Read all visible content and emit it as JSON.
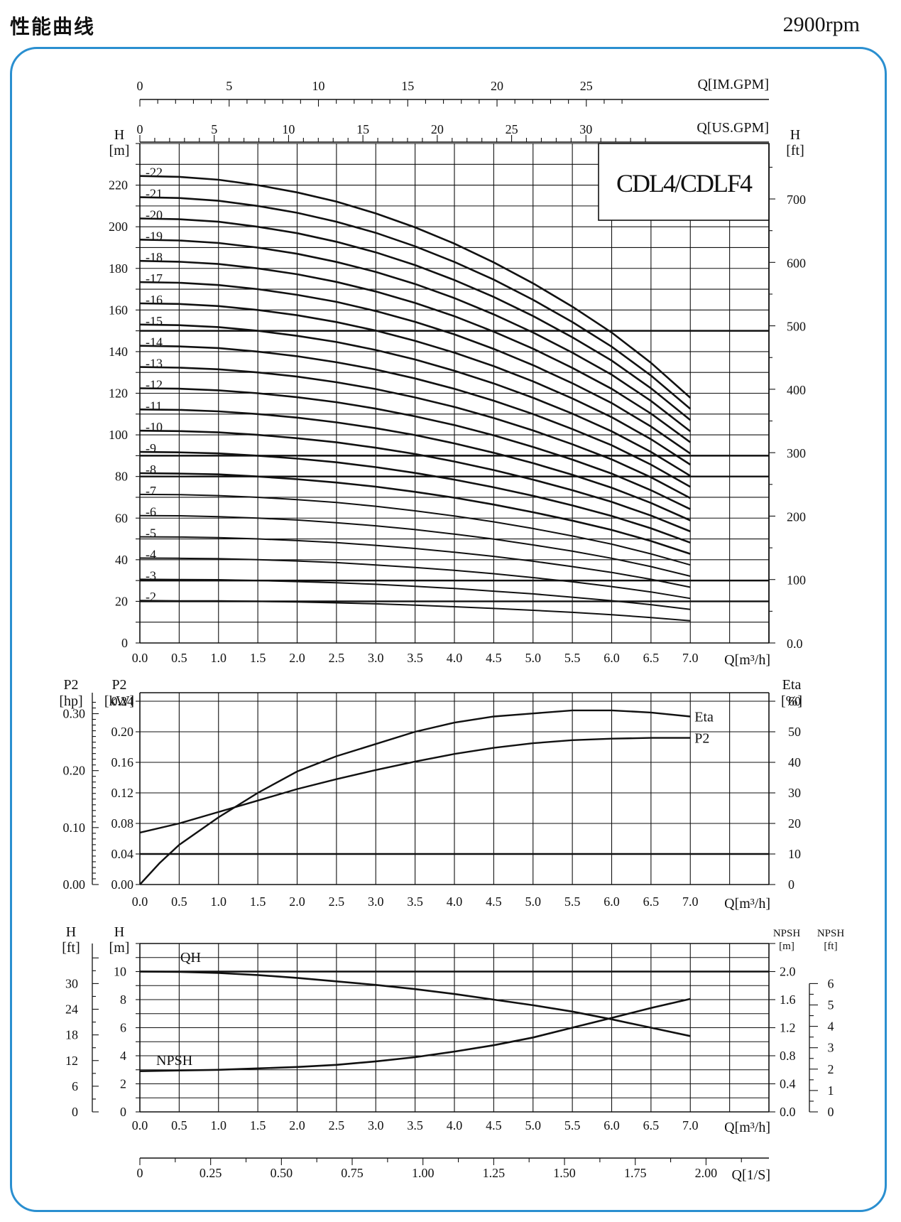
{
  "header": {
    "title": "性能曲线",
    "speed": "2900rpm"
  },
  "chart_data": [
    {
      "type": "line",
      "model_label": "CDL4/CDLF4",
      "xlabel": "Q[m³/h]",
      "xlim": [
        0,
        7
      ],
      "x_ticks": [
        "0.0",
        "0.5",
        "1.0",
        "1.5",
        "2.0",
        "2.5",
        "3.0",
        "3.5",
        "4.0",
        "4.5",
        "5.0",
        "5.5",
        "6.0",
        "6.5",
        "7.0"
      ],
      "top_axis_im": {
        "label": "Q[IM.GPM]",
        "ticks": [
          "0",
          "5",
          "10",
          "15",
          "20",
          "25"
        ]
      },
      "top_axis_us": {
        "label": "Q[US.GPM]",
        "ticks": [
          "0",
          "5",
          "10",
          "15",
          "20",
          "25",
          "30"
        ]
      },
      "y_left": {
        "label": [
          "H",
          "[m]"
        ],
        "lim": [
          0,
          240
        ],
        "ticks": [
          "0",
          "20",
          "40",
          "60",
          "80",
          "100",
          "120",
          "140",
          "160",
          "180",
          "200",
          "220"
        ]
      },
      "y_right": {
        "label": [
          "H",
          "[ft]"
        ],
        "ticks": [
          "0.0",
          "100",
          "200",
          "300",
          "400",
          "500",
          "600",
          "700"
        ]
      },
      "x": [
        0,
        0.5,
        1,
        1.5,
        2,
        2.5,
        3,
        3.5,
        4,
        4.5,
        5,
        5.5,
        6,
        6.5,
        7
      ],
      "shape_factors": [
        1.0,
        0.998,
        0.992,
        0.98,
        0.965,
        0.945,
        0.92,
        0.89,
        0.855,
        0.815,
        0.77,
        0.72,
        0.665,
        0.6,
        0.525
      ],
      "series": [
        {
          "name": "-2",
          "values": [
            20.4,
            20.2,
            20.2,
            20.0,
            19.7,
            19.3,
            18.8,
            18.2,
            17.4,
            16.6,
            15.7,
            14.7,
            13.6,
            12.2,
            10.7
          ]
        },
        {
          "name": "-3",
          "values": [
            30.6,
            30.5,
            30.4,
            30.0,
            29.5,
            28.9,
            28.2,
            27.2,
            26.2,
            24.9,
            23.6,
            22.0,
            20.3,
            18.4,
            16.1
          ]
        },
        {
          "name": "-4",
          "values": [
            40.8,
            40.7,
            40.5,
            40.0,
            39.4,
            38.6,
            37.5,
            36.3,
            34.9,
            33.3,
            31.4,
            29.4,
            27.1,
            24.5,
            21.4
          ]
        },
        {
          "name": "-5",
          "values": [
            51.0,
            50.9,
            50.6,
            50.0,
            49.2,
            48.2,
            46.9,
            45.4,
            43.6,
            41.6,
            39.3,
            36.7,
            33.9,
            30.6,
            26.8
          ]
        },
        {
          "name": "-6",
          "values": [
            61.2,
            61.1,
            60.7,
            60.0,
            59.1,
            57.8,
            56.3,
            54.5,
            52.3,
            49.9,
            47.1,
            44.1,
            40.7,
            36.7,
            32.1
          ]
        },
        {
          "name": "-7",
          "values": [
            71.4,
            71.3,
            70.8,
            70.0,
            68.9,
            67.5,
            65.7,
            63.5,
            61.0,
            58.2,
            55.0,
            51.4,
            47.5,
            42.8,
            37.5
          ]
        },
        {
          "name": "-8",
          "values": [
            81.6,
            81.4,
            81.0,
            80.0,
            78.7,
            77.1,
            75.1,
            72.6,
            69.8,
            66.5,
            62.8,
            58.8,
            54.3,
            49.0,
            42.8
          ]
        },
        {
          "name": "-9",
          "values": [
            91.8,
            91.6,
            91.1,
            90.0,
            88.6,
            86.8,
            84.5,
            81.7,
            78.5,
            74.8,
            70.7,
            66.1,
            61.0,
            55.1,
            48.2
          ]
        },
        {
          "name": "-10",
          "values": [
            102.0,
            101.8,
            101.2,
            100.0,
            98.4,
            96.4,
            93.8,
            90.8,
            87.2,
            83.1,
            78.5,
            73.4,
            67.8,
            61.2,
            53.6
          ]
        },
        {
          "name": "-11",
          "values": [
            112.2,
            112.0,
            111.3,
            110.0,
            108.3,
            106.0,
            103.2,
            99.9,
            95.9,
            91.4,
            86.4,
            80.8,
            74.6,
            67.3,
            58.9
          ]
        },
        {
          "name": "-12",
          "values": [
            122.4,
            122.2,
            121.4,
            120.0,
            118.1,
            115.7,
            112.6,
            108.9,
            104.7,
            99.8,
            94.2,
            88.1,
            81.4,
            73.4,
            64.3
          ]
        },
        {
          "name": "-13",
          "values": [
            132.6,
            132.3,
            131.5,
            130.0,
            128.0,
            125.3,
            122.0,
            118.0,
            113.4,
            108.1,
            102.1,
            95.5,
            88.2,
            79.6,
            69.6
          ]
        },
        {
          "name": "-14",
          "values": [
            142.8,
            142.5,
            141.7,
            140.0,
            137.8,
            134.9,
            131.4,
            127.1,
            122.1,
            116.4,
            110.0,
            102.8,
            95.0,
            85.7,
            75.0
          ]
        },
        {
          "name": "-15",
          "values": [
            153.0,
            152.7,
            151.8,
            150.0,
            147.6,
            144.6,
            140.8,
            136.2,
            130.8,
            124.7,
            117.8,
            110.2,
            101.7,
            91.8,
            80.3
          ]
        },
        {
          "name": "-16",
          "values": [
            163.2,
            162.9,
            161.9,
            160.0,
            157.5,
            154.2,
            150.1,
            145.2,
            139.5,
            133.0,
            125.7,
            117.5,
            108.5,
            97.9,
            85.7
          ]
        },
        {
          "name": "-17",
          "values": [
            173.4,
            173.1,
            172.0,
            170.0,
            167.3,
            163.9,
            159.5,
            154.3,
            148.3,
            141.3,
            133.5,
            124.8,
            115.3,
            104.0,
            91.0
          ]
        },
        {
          "name": "-18",
          "values": [
            183.6,
            183.2,
            182.1,
            180.0,
            177.2,
            173.5,
            168.9,
            163.4,
            157.0,
            149.6,
            141.4,
            132.2,
            122.1,
            110.2,
            96.4
          ]
        },
        {
          "name": "-19",
          "values": [
            193.8,
            193.4,
            192.2,
            190.0,
            187.0,
            183.1,
            178.3,
            172.5,
            165.7,
            157.9,
            149.2,
            139.5,
            128.9,
            116.3,
            101.7
          ]
        },
        {
          "name": "-20",
          "values": [
            204.0,
            203.6,
            202.4,
            200.0,
            196.9,
            192.8,
            187.7,
            181.6,
            174.4,
            166.3,
            157.1,
            146.9,
            135.7,
            122.4,
            107.1
          ]
        },
        {
          "name": "-21",
          "values": [
            214.2,
            213.8,
            212.5,
            210.0,
            206.7,
            202.4,
            197.1,
            190.6,
            183.1,
            174.6,
            164.9,
            154.2,
            142.4,
            128.5,
            112.5
          ]
        },
        {
          "name": "-22",
          "values": [
            224.4,
            224.0,
            222.6,
            220.0,
            216.5,
            212.1,
            206.4,
            199.7,
            191.9,
            182.9,
            172.8,
            161.6,
            149.2,
            134.6,
            117.8
          ]
        }
      ]
    },
    {
      "type": "line",
      "xlabel": "Q[m³/h]",
      "xlim": [
        0,
        7
      ],
      "x_ticks": [
        "0.0",
        "0.5",
        "1.0",
        "1.5",
        "2.0",
        "2.5",
        "3.0",
        "3.5",
        "4.0",
        "4.5",
        "5.0",
        "5.5",
        "6.0",
        "6.5",
        "7.0"
      ],
      "y_left_hp": {
        "label": [
          "P2",
          "[hp]"
        ],
        "ticks": [
          "0.00",
          "0.10",
          "0.20",
          "0.30"
        ]
      },
      "y_left_kw": {
        "label": [
          "P2",
          "[kW]"
        ],
        "lim": [
          0,
          0.24
        ],
        "ticks": [
          "0.00",
          "0.04",
          "0.08",
          "0.12",
          "0.16",
          "0.20",
          "0.24"
        ]
      },
      "y_right": {
        "label": [
          "Eta",
          "[%]"
        ],
        "lim": [
          0,
          60
        ],
        "ticks": [
          "0",
          "10",
          "20",
          "30",
          "40",
          "50",
          "60"
        ]
      },
      "series": [
        {
          "name": "Eta",
          "axis": "right",
          "x": [
            0,
            0.25,
            0.5,
            1,
            1.5,
            2,
            2.5,
            3,
            3.5,
            4,
            4.5,
            5,
            5.5,
            6,
            6.5,
            7
          ],
          "values": [
            0,
            7,
            13,
            22,
            30,
            37,
            42,
            46,
            50,
            53,
            55,
            56,
            57,
            57,
            56.3,
            55
          ]
        },
        {
          "name": "P2",
          "axis": "left",
          "x": [
            0,
            0.5,
            1,
            1.5,
            2,
            2.5,
            3,
            3.5,
            4,
            4.5,
            5,
            5.5,
            6,
            6.5,
            7
          ],
          "values": [
            0.068,
            0.08,
            0.095,
            0.11,
            0.125,
            0.138,
            0.15,
            0.161,
            0.171,
            0.179,
            0.185,
            0.189,
            0.191,
            0.192,
            0.192
          ]
        }
      ]
    },
    {
      "type": "line",
      "xlabel": "Q[m³/h]",
      "xlim": [
        0,
        7
      ],
      "x_ticks": [
        "0.0",
        "0.5",
        "1.0",
        "1.5",
        "2.0",
        "2.5",
        "3.0",
        "3.5",
        "4.0",
        "4.5",
        "5.0",
        "5.5",
        "6.0",
        "6.5",
        "7.0"
      ],
      "y_left_ft": {
        "label": [
          "H",
          "[ft]"
        ],
        "ticks": [
          "0",
          "6",
          "12",
          "18",
          "24",
          "30"
        ]
      },
      "y_left_m": {
        "label": [
          "H",
          "[m]"
        ],
        "lim": [
          0,
          12
        ],
        "ticks": [
          "0",
          "2",
          "4",
          "6",
          "8",
          "10"
        ]
      },
      "y_right_m": {
        "label": [
          "NPSH",
          "[m]"
        ],
        "lim": [
          0,
          2.4
        ],
        "ticks": [
          "0.0",
          "0.4",
          "0.8",
          "1.2",
          "1.6",
          "2.0"
        ]
      },
      "y_right_ft": {
        "label": [
          "NPSH",
          "[ft]"
        ],
        "ticks": [
          "0",
          "1",
          "2",
          "3",
          "4",
          "5",
          "6"
        ]
      },
      "series": [
        {
          "name": "QH",
          "axis": "left",
          "x": [
            0,
            0.5,
            1,
            1.5,
            2,
            2.5,
            3,
            3.5,
            4,
            4.5,
            5,
            5.5,
            6,
            6.5,
            7
          ],
          "values": [
            10,
            9.98,
            9.9,
            9.75,
            9.55,
            9.3,
            9.05,
            8.75,
            8.4,
            8.0,
            7.6,
            7.15,
            6.6,
            6.0,
            5.4
          ]
        },
        {
          "name": "NPSH",
          "axis": "right",
          "x": [
            0,
            0.5,
            1,
            1.5,
            2,
            2.5,
            3,
            3.5,
            4,
            4.5,
            5,
            5.5,
            6,
            6.5,
            7
          ],
          "values": [
            0.58,
            0.59,
            0.6,
            0.62,
            0.64,
            0.67,
            0.72,
            0.78,
            0.86,
            0.95,
            1.06,
            1.2,
            1.34,
            1.48,
            1.61
          ]
        }
      ]
    },
    {
      "type": "axis",
      "label": "Q[1/S]",
      "ticks": [
        "0",
        "0.25",
        "0.50",
        "0.75",
        "1.00",
        "1.25",
        "1.50",
        "1.75",
        "2.00"
      ]
    }
  ]
}
